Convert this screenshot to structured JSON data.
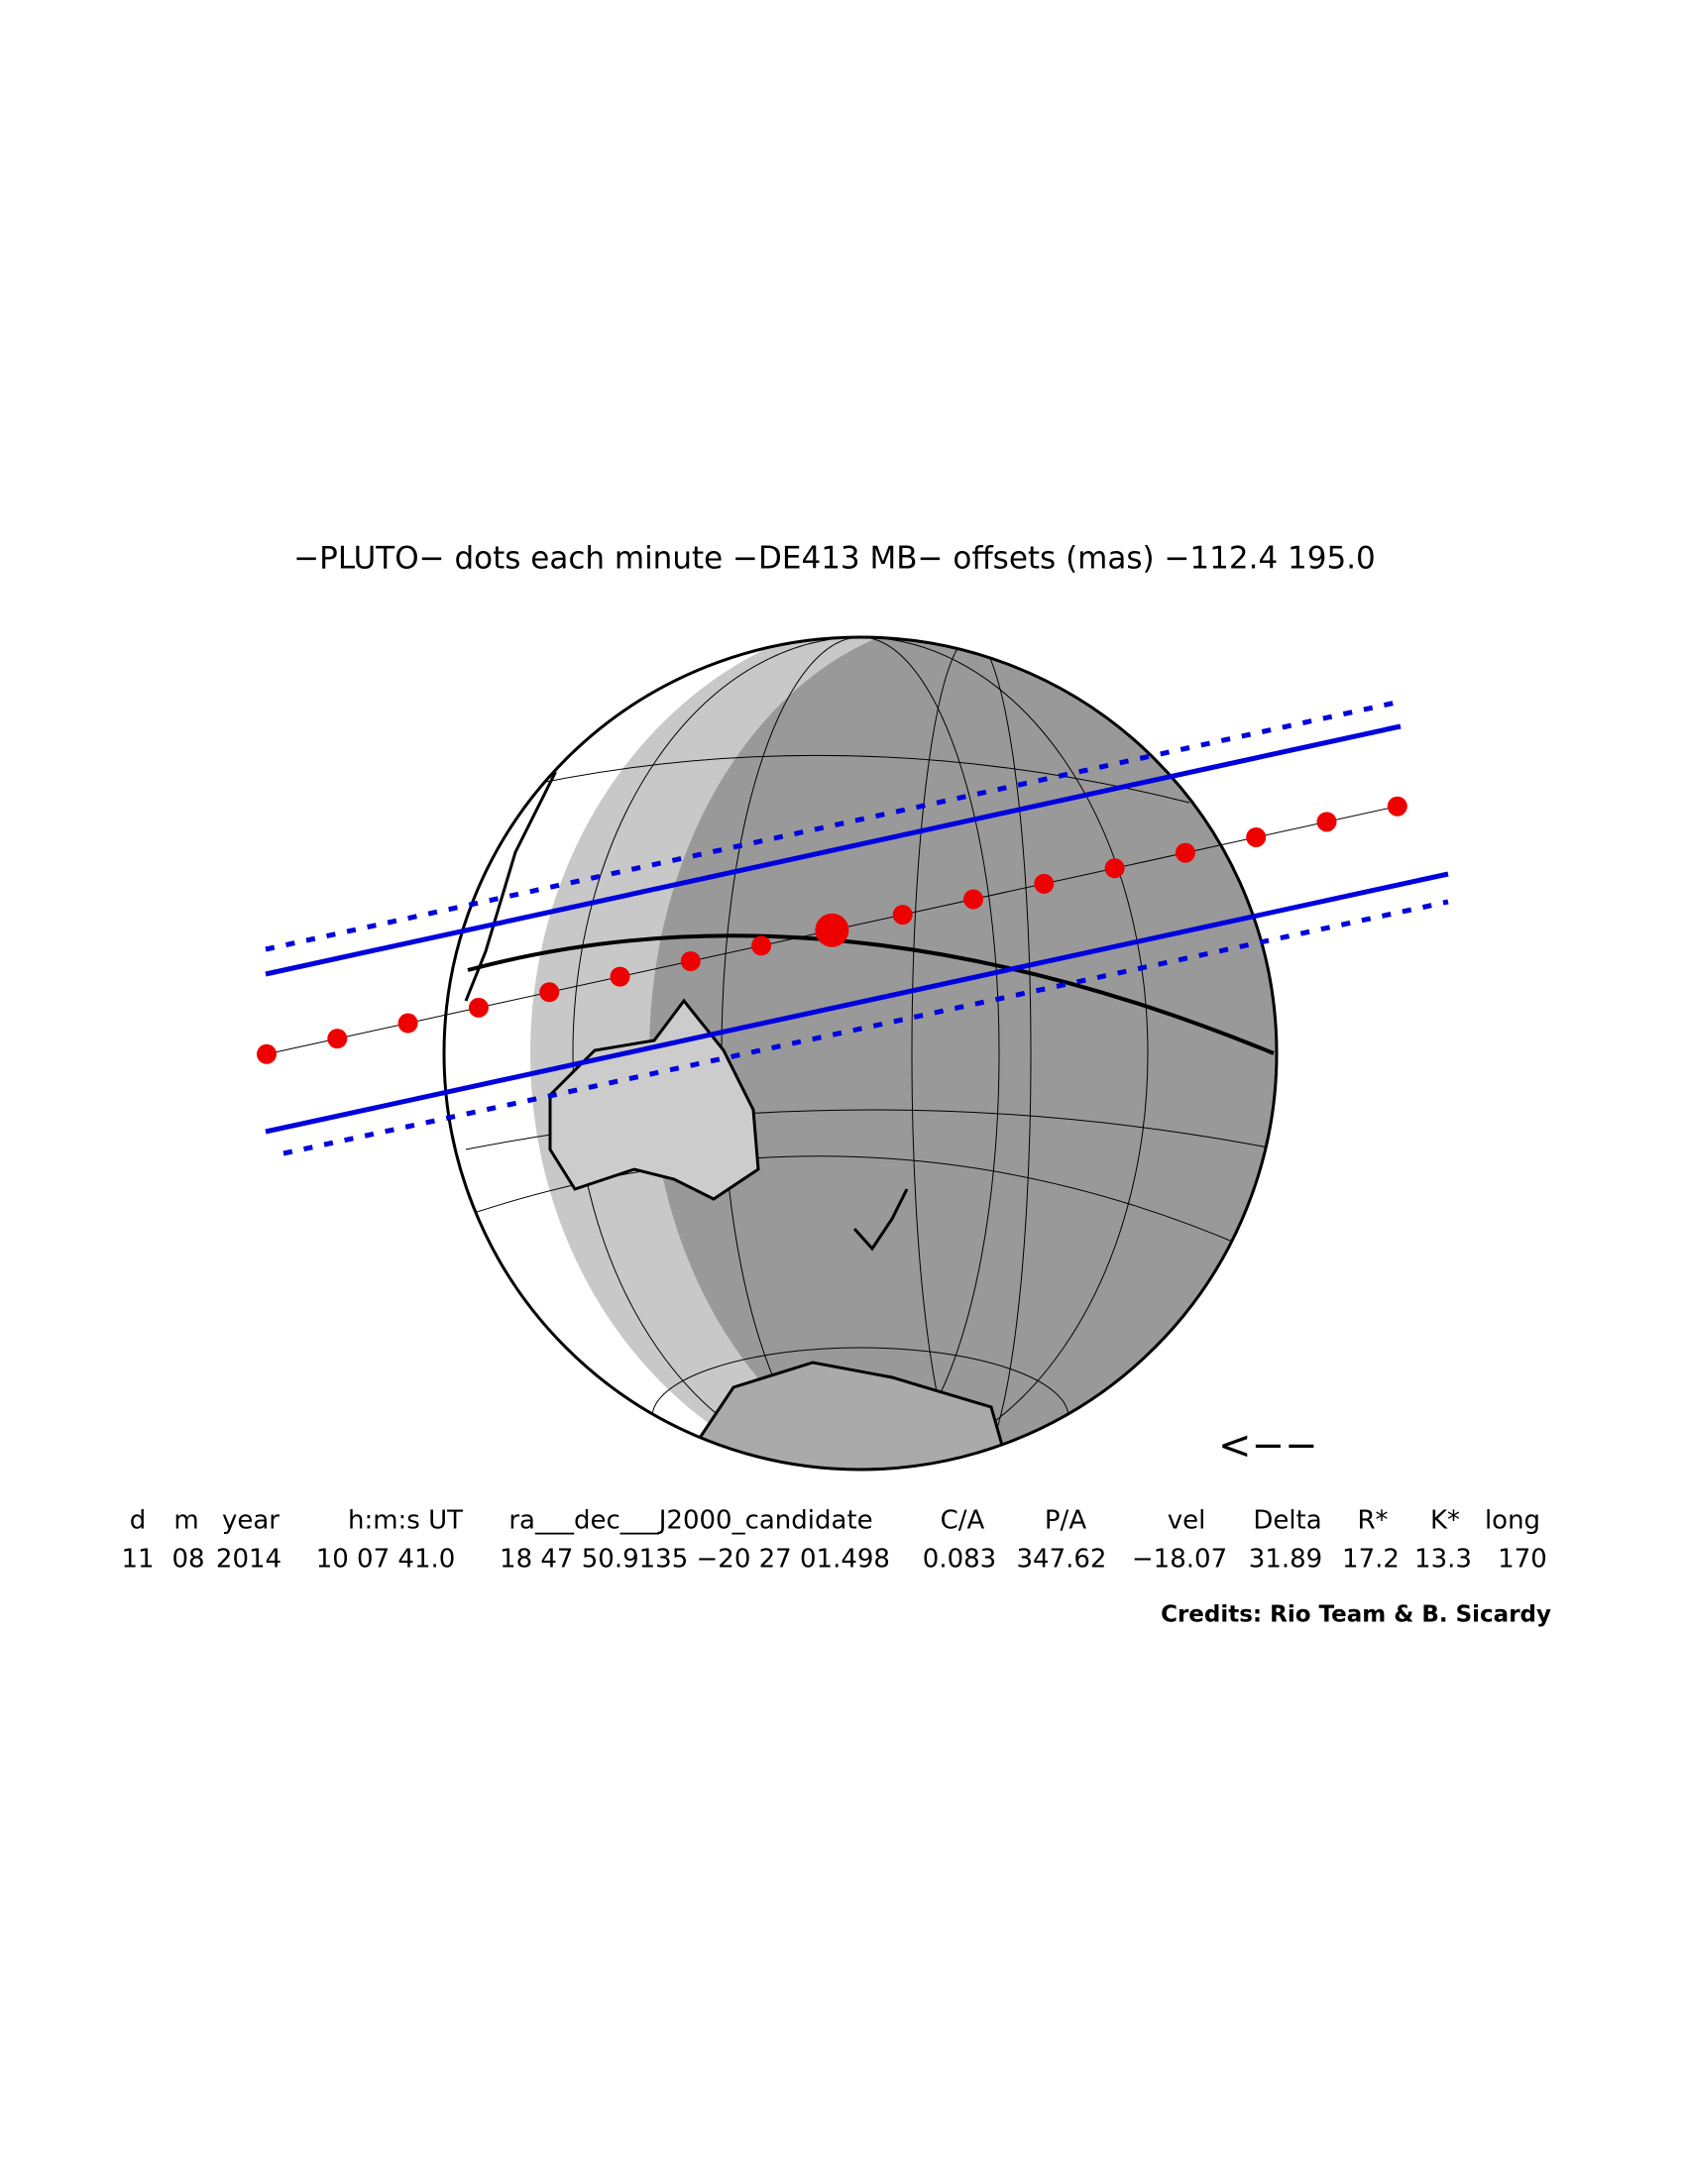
{
  "title": "−PLUTO− dots each minute −DE413 MB− offsets (mas) −112.4   195.0",
  "direction_arrow": "<−−",
  "table": {
    "headers": [
      "d",
      "m",
      "year",
      "h:m:s UT",
      "ra___dec___J2000_candidate",
      "C/A",
      "P/A",
      "vel",
      "Delta",
      "R*",
      "K*",
      "long"
    ],
    "rows": [
      [
        "11",
        "08",
        "2014",
        "10 07 41.0",
        "18 47 50.9135 −20 27 01.498",
        "0.083",
        "347.62",
        "−18.07",
        "31.89",
        "17.2",
        "13.3",
        "170"
      ]
    ]
  },
  "credits": "Credits: Rio Team & B. Sicardy"
}
